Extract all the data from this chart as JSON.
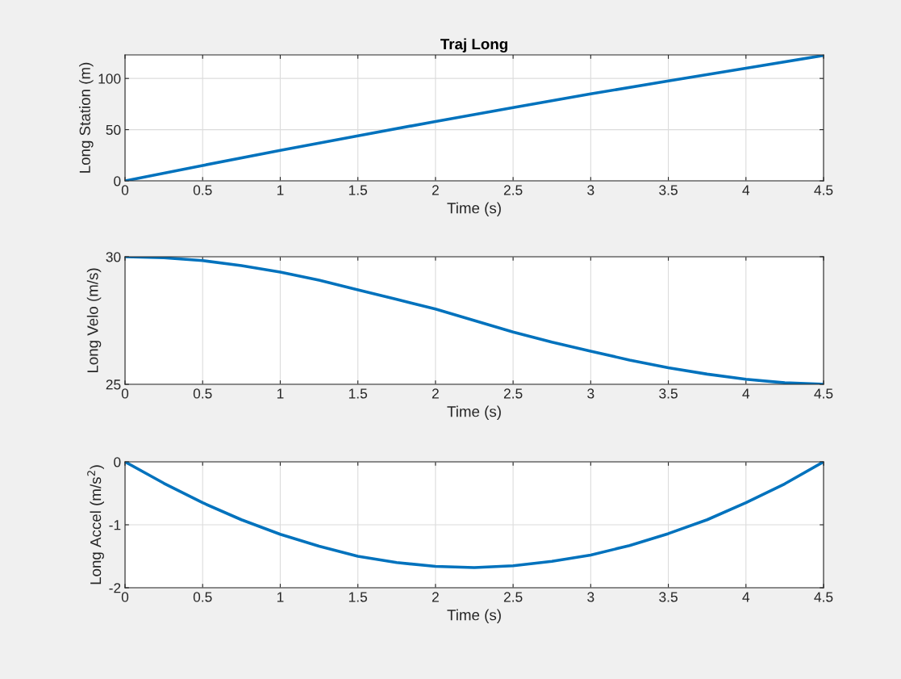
{
  "chart_data": [
    {
      "type": "line",
      "title": "Traj Long",
      "xlabel": "Time (s)",
      "ylabel": "Long Station (m)",
      "xlim": [
        0,
        4.5
      ],
      "xticks": [
        0,
        0.5,
        1,
        1.5,
        2,
        2.5,
        3,
        3.5,
        4,
        4.5
      ],
      "ylim": [
        0,
        123
      ],
      "yticks": [
        0,
        50,
        100
      ],
      "grid": true,
      "x": [
        0,
        0.5,
        1,
        1.5,
        2,
        2.5,
        3,
        3.5,
        4,
        4.5
      ],
      "series": [
        {
          "color": "#0072bd",
          "values": [
            0,
            15,
            29.7,
            44,
            58,
            71.5,
            85,
            97.5,
            110,
            122.5
          ]
        }
      ]
    },
    {
      "type": "line",
      "xlabel": "Time (s)",
      "ylabel": "Long Velo (m/s)",
      "xlim": [
        0,
        4.5
      ],
      "xticks": [
        0,
        0.5,
        1,
        1.5,
        2,
        2.5,
        3,
        3.5,
        4,
        4.5
      ],
      "ylim": [
        25,
        30
      ],
      "yticks": [
        25,
        30
      ],
      "grid": true,
      "x": [
        0,
        0.25,
        0.5,
        0.75,
        1,
        1.25,
        1.5,
        1.75,
        2,
        2.25,
        2.5,
        2.75,
        3,
        3.25,
        3.5,
        3.75,
        4,
        4.25,
        4.5
      ],
      "series": [
        {
          "color": "#0072bd",
          "values": [
            30,
            29.96,
            29.85,
            29.65,
            29.4,
            29.08,
            28.7,
            28.33,
            27.95,
            27.5,
            27.05,
            26.65,
            26.3,
            25.95,
            25.65,
            25.4,
            25.2,
            25.06,
            25.0
          ]
        }
      ]
    },
    {
      "type": "line",
      "xlabel": "Time (s)",
      "ylabel": "Long Accel (m/s$^{2}$)",
      "xlim": [
        0,
        4.5
      ],
      "xticks": [
        0,
        0.5,
        1,
        1.5,
        2,
        2.5,
        3,
        3.5,
        4,
        4.5
      ],
      "ylim": [
        -2,
        0
      ],
      "yticks": [
        -2,
        -1,
        0
      ],
      "grid": true,
      "x": [
        0,
        0.25,
        0.5,
        0.75,
        1,
        1.25,
        1.5,
        1.75,
        2,
        2.25,
        2.5,
        2.75,
        3,
        3.25,
        3.5,
        3.75,
        4,
        4.25,
        4.5
      ],
      "series": [
        {
          "color": "#0072bd",
          "values": [
            0,
            -0.34,
            -0.65,
            -0.92,
            -1.15,
            -1.34,
            -1.5,
            -1.6,
            -1.66,
            -1.68,
            -1.65,
            -1.58,
            -1.48,
            -1.33,
            -1.14,
            -0.92,
            -0.65,
            -0.35,
            0
          ]
        }
      ]
    }
  ]
}
